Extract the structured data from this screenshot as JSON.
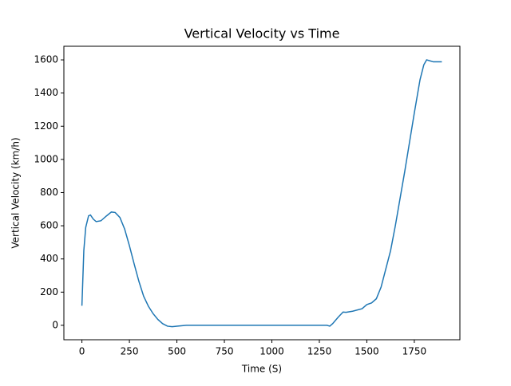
{
  "chart_data": {
    "type": "line",
    "title": "Vertical Velocity vs Time",
    "x_label": "Time (S)",
    "y_label": "Vertical Velocity (km/h)",
    "x": [
      0,
      10,
      20,
      35,
      45,
      60,
      75,
      100,
      130,
      155,
      175,
      200,
      225,
      250,
      275,
      300,
      325,
      350,
      375,
      400,
      425,
      450,
      475,
      500,
      550,
      600,
      1000,
      1290,
      1305,
      1320,
      1350,
      1375,
      1390,
      1425,
      1475,
      1500,
      1525,
      1550,
      1575,
      1600,
      1625,
      1650,
      1700,
      1750,
      1780,
      1800,
      1815,
      1830,
      1850,
      1895
    ],
    "series": [
      {
        "name": "Vertical Velocity",
        "color": "#1f77b4",
        "values": [
          118,
          450,
          590,
          660,
          665,
          640,
          625,
          630,
          660,
          683,
          680,
          650,
          580,
          480,
          370,
          265,
          175,
          115,
          70,
          35,
          10,
          -5,
          -8,
          -5,
          0,
          0,
          0,
          0,
          -5,
          10,
          50,
          80,
          78,
          85,
          100,
          125,
          135,
          160,
          230,
          340,
          450,
          600,
          930,
          1280,
          1480,
          1570,
          1600,
          1595,
          1588,
          1588
        ]
      }
    ],
    "xlim": [
      -95,
      1990
    ],
    "ylim": [
      -87,
      1682
    ],
    "xticks": [
      0,
      250,
      500,
      750,
      1000,
      1250,
      1500,
      1750
    ],
    "yticks": [
      0,
      200,
      400,
      600,
      800,
      1000,
      1200,
      1400,
      1600
    ],
    "grid": false
  }
}
